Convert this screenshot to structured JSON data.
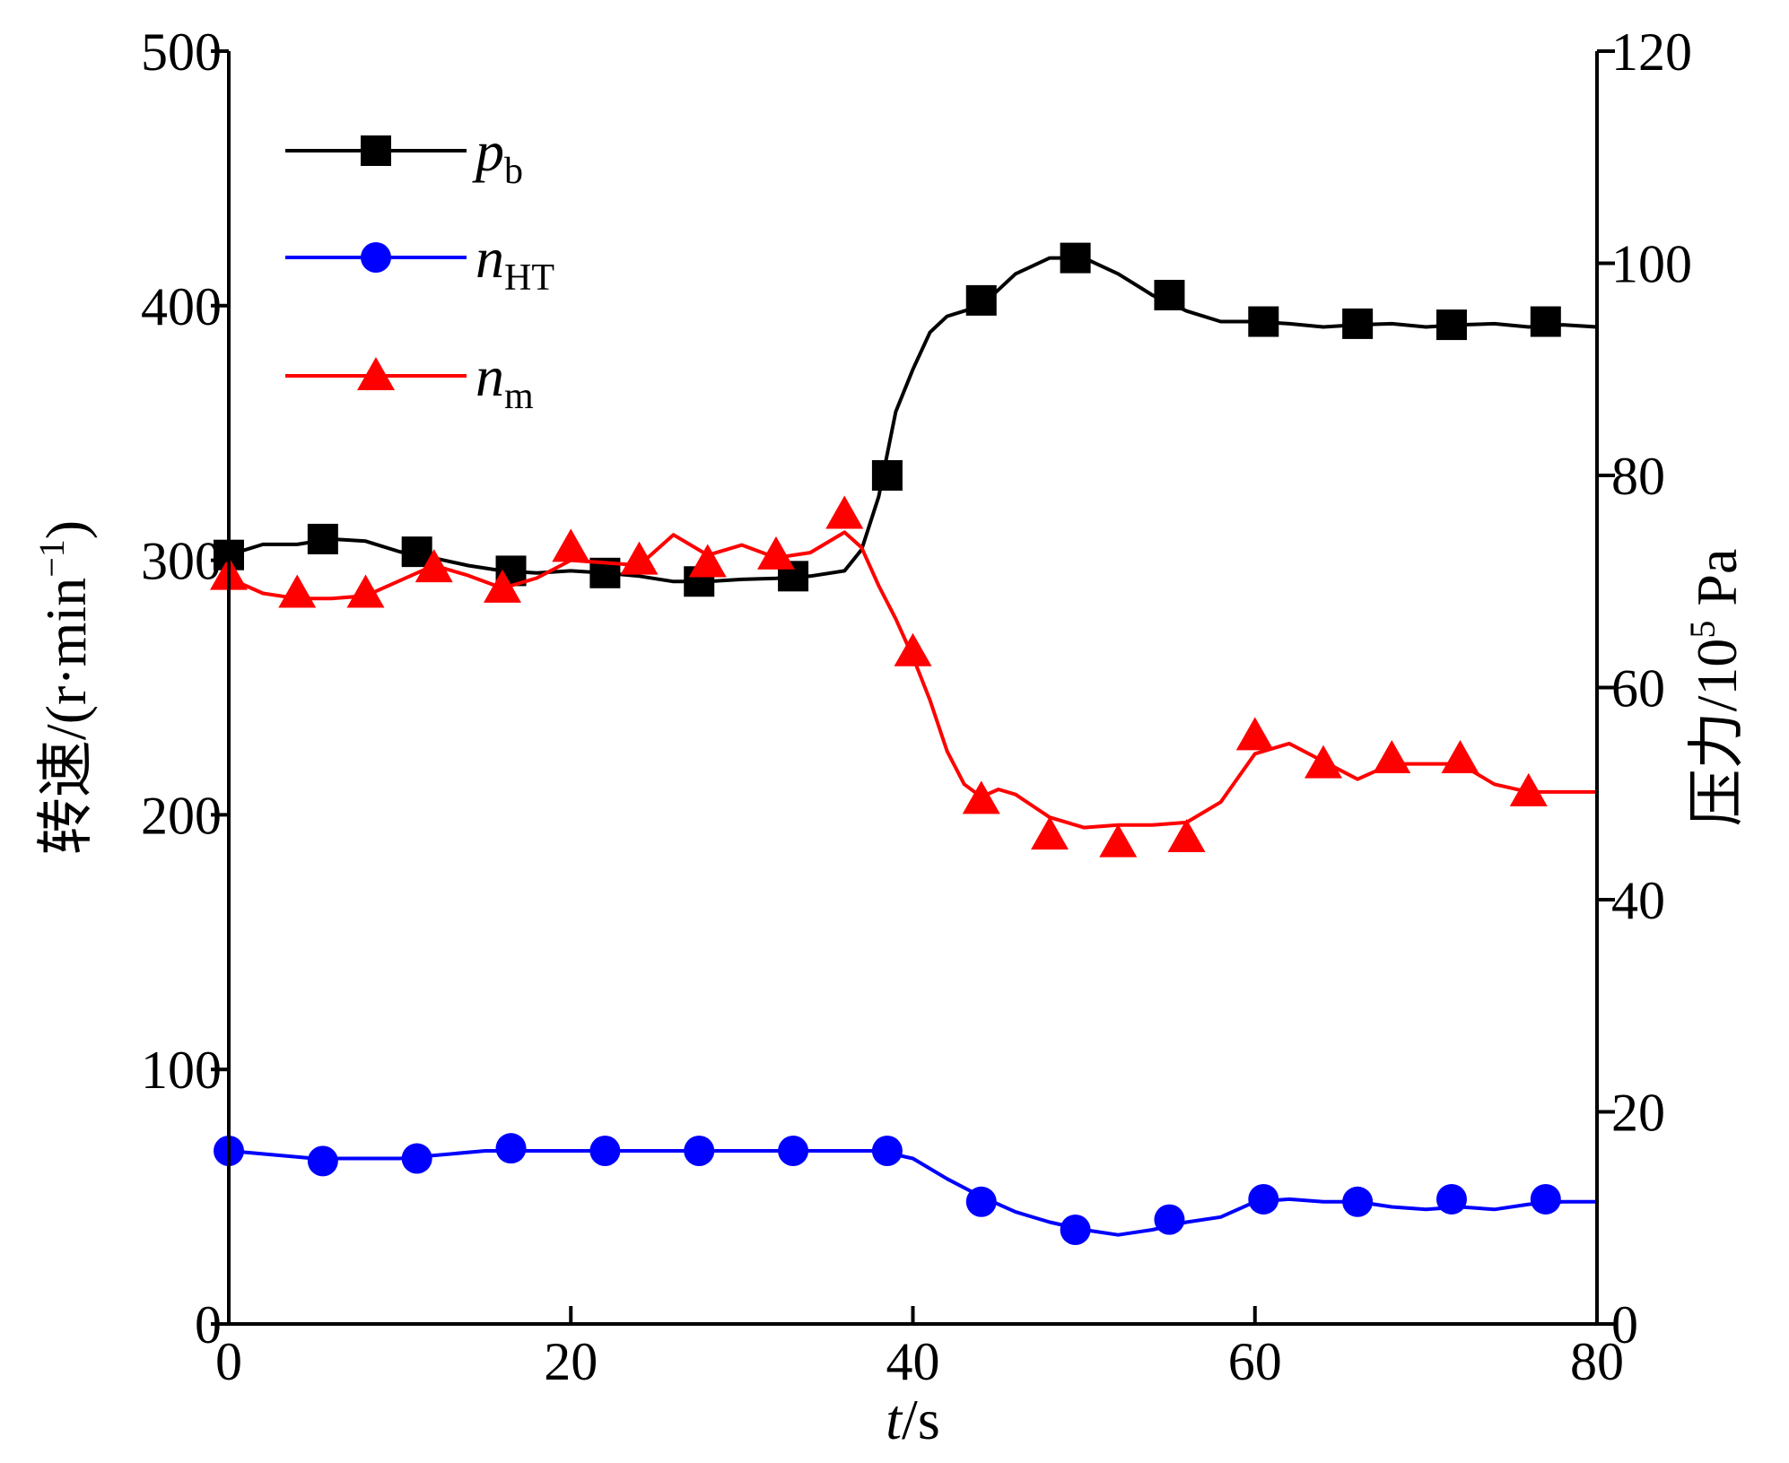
{
  "chart_data": {
    "type": "line",
    "title": "",
    "x": {
      "label_var": "t",
      "label_unit": "/s",
      "range": [
        0,
        80
      ],
      "ticks": [
        0,
        20,
        40,
        60,
        80
      ]
    },
    "y_left": {
      "label": "转速/(r·min",
      "label_sup": "−1",
      "label_close": ")",
      "range": [
        0,
        500
      ],
      "ticks": [
        0,
        100,
        200,
        300,
        400,
        500
      ]
    },
    "y_right": {
      "label": "压力/10",
      "label_sup": "5",
      "label_unit": " Pa",
      "range": [
        0,
        120
      ],
      "ticks": [
        0,
        20,
        40,
        60,
        80,
        100,
        120
      ]
    },
    "legend": {
      "position": "top-left"
    },
    "series": [
      {
        "name": "p",
        "sub": "b",
        "axis": "right",
        "color": "#000000",
        "marker": "square",
        "x": [
          0,
          2,
          4,
          6,
          8,
          10,
          12,
          14,
          16,
          18,
          20,
          22,
          24,
          26,
          28,
          30,
          32,
          34,
          36,
          37,
          38,
          39,
          40,
          41,
          42,
          43,
          44,
          46,
          48,
          50,
          52,
          54,
          56,
          58,
          60,
          62,
          64,
          66,
          68,
          70,
          72,
          74,
          76,
          78,
          80
        ],
        "y": [
          72.5,
          73.5,
          73.5,
          74.0,
          73.8,
          72.8,
          72.2,
          71.5,
          71.0,
          70.8,
          71.0,
          70.8,
          70.5,
          70.0,
          70.0,
          70.2,
          70.3,
          70.5,
          71.0,
          73.0,
          78.0,
          86.0,
          90.0,
          93.5,
          95.0,
          95.5,
          96.0,
          99.0,
          100.5,
          100.5,
          99.0,
          97.0,
          95.5,
          94.5,
          94.5,
          94.3,
          94.0,
          94.2,
          94.3,
          94.0,
          94.2,
          94.3,
          94.0,
          94.2,
          94.0
        ],
        "marker_x": [
          0,
          5.5,
          11,
          16.5,
          22,
          27.5,
          33,
          38.5,
          44,
          49.5,
          55,
          60.5,
          66,
          71.5,
          77
        ],
        "marker_y": [
          72.5,
          74.0,
          72.8,
          71.0,
          70.8,
          70.0,
          70.5,
          80.0,
          96.5,
          100.5,
          97.0,
          94.5,
          94.3,
          94.2,
          94.5
        ]
      },
      {
        "name": "n",
        "sub": "HT",
        "axis": "left",
        "color": "#0000ff",
        "marker": "circle",
        "x": [
          0,
          5,
          10,
          15,
          20,
          25,
          30,
          35,
          38,
          40,
          42,
          44,
          46,
          48,
          50,
          52,
          54,
          56,
          58,
          60,
          62,
          64,
          66,
          68,
          70,
          72,
          74,
          76,
          78,
          80
        ],
        "y": [
          68,
          65,
          65,
          68,
          68,
          68,
          68,
          68,
          68,
          65,
          57,
          50,
          44,
          40,
          37,
          35,
          37,
          40,
          42,
          48,
          49,
          48,
          48,
          46,
          45,
          46,
          45,
          47,
          48,
          48
        ],
        "marker_x": [
          0,
          5.5,
          11,
          16.5,
          22,
          27.5,
          33,
          38.5,
          44,
          49.5,
          55,
          60.5,
          66,
          71.5,
          77
        ],
        "marker_y": [
          68,
          64,
          65,
          69,
          68,
          68,
          68,
          68,
          48,
          37,
          41,
          49,
          48,
          49,
          49
        ]
      },
      {
        "name": "n",
        "sub": "m",
        "axis": "left",
        "color": "#ff0000",
        "marker": "triangle",
        "x": [
          0,
          2,
          4,
          6,
          8,
          10,
          12,
          14,
          16,
          18,
          20,
          22,
          24,
          26,
          28,
          30,
          32,
          34,
          36,
          37,
          38,
          39,
          40,
          41,
          42,
          43,
          44,
          45,
          46,
          48,
          50,
          52,
          54,
          56,
          58,
          60,
          62,
          64,
          66,
          68,
          70,
          72,
          74,
          76,
          78,
          80
        ],
        "y": [
          293,
          287,
          285,
          285,
          286,
          292,
          298,
          294,
          289,
          293,
          300,
          299,
          298,
          310,
          302,
          306,
          301,
          303,
          311,
          305,
          290,
          277,
          262,
          245,
          225,
          212,
          207,
          210,
          208,
          199,
          195,
          196,
          196,
          197,
          205,
          224,
          228,
          221,
          214,
          220,
          220,
          220,
          212,
          209,
          209,
          209
        ],
        "marker_x": [
          0,
          4,
          8,
          12,
          16,
          20,
          24,
          28,
          32,
          36,
          40,
          44,
          48,
          52,
          56,
          60,
          64,
          68,
          72,
          76
        ],
        "marker_y": [
          294,
          287,
          287,
          297,
          289,
          305,
          300,
          299,
          302,
          318,
          264,
          206,
          192,
          189,
          191,
          231,
          220,
          222,
          222,
          209
        ]
      }
    ]
  }
}
